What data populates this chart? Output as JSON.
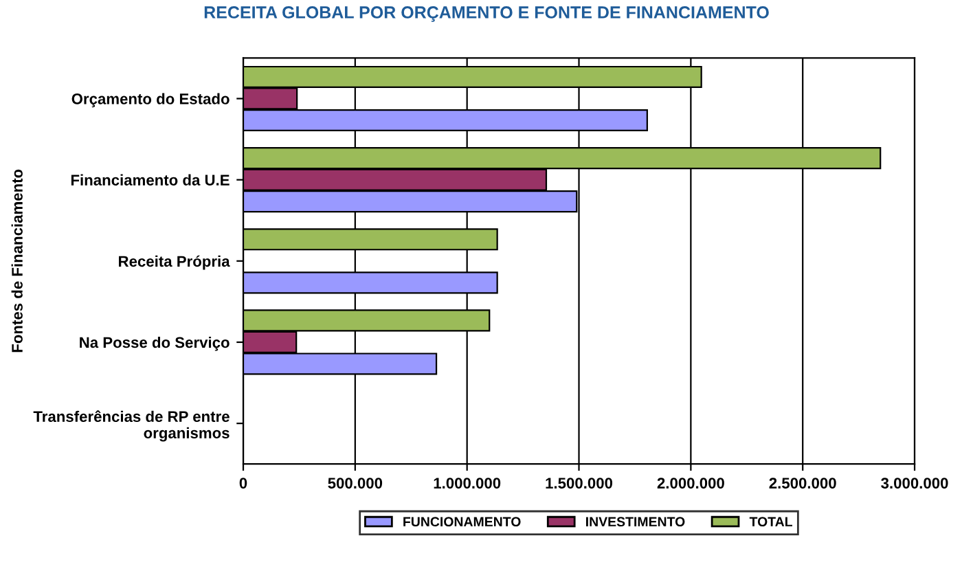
{
  "chart_data": {
    "type": "bar",
    "orientation": "horizontal",
    "title": "RECEITA GLOBAL POR ORÇAMENTO E FONTE DE FINANCIAMENTO",
    "ylabel": "Fontes de Financiamento",
    "categories": [
      "Orçamento do Estado",
      "Financiamento da U.E",
      "Receita Própria",
      "Na Posse do Serviço",
      "Transferências de RP entre organismos"
    ],
    "series": [
      {
        "name": "FUNCIONAMENTO",
        "color": "#9999ff",
        "values": [
          1805000,
          1490000,
          1135000,
          863000,
          null
        ]
      },
      {
        "name": "INVESTIMENTO",
        "color": "#993366",
        "values": [
          240000,
          1354000,
          null,
          237000,
          null
        ]
      },
      {
        "name": "TOTAL",
        "color": "#9bbb59",
        "values": [
          2047000,
          2847000,
          1135000,
          1100000,
          null
        ]
      }
    ],
    "xlim": [
      0,
      3000000
    ],
    "xticks": [
      {
        "value": 0,
        "label": "0"
      },
      {
        "value": 500000,
        "label": "500.000"
      },
      {
        "value": 1000000,
        "label": "1.000.000"
      },
      {
        "value": 1500000,
        "label": "1.500.000"
      },
      {
        "value": 2000000,
        "label": "2.000.000"
      },
      {
        "value": 2500000,
        "label": "2.500.000"
      },
      {
        "value": 3000000,
        "label": "3.000.000"
      }
    ],
    "grid": "x",
    "legend": "bottom"
  }
}
